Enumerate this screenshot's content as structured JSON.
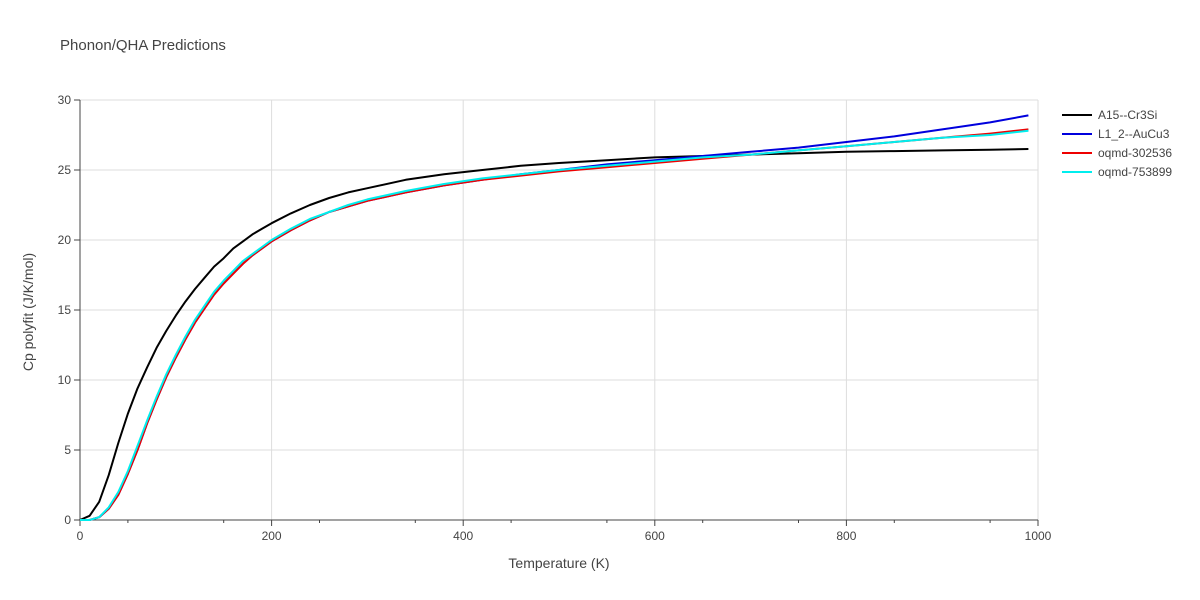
{
  "chart_data": {
    "type": "line",
    "title": "Phonon/QHA Predictions",
    "xlabel": "Temperature (K)",
    "ylabel": "Cp polyfit (J/K/mol)",
    "xlim": [
      0,
      1000
    ],
    "ylim": [
      0,
      30
    ],
    "xticks": [
      0,
      200,
      400,
      600,
      800,
      1000
    ],
    "yticks": [
      0,
      5,
      10,
      15,
      20,
      25,
      30
    ],
    "grid": true,
    "legend_position": "top-right, outside plot",
    "series": [
      {
        "name": "A15--Cr3Si",
        "color": "#000000",
        "x": [
          0,
          10,
          20,
          30,
          40,
          50,
          60,
          70,
          80,
          90,
          100,
          110,
          120,
          130,
          140,
          150,
          160,
          170,
          180,
          190,
          200,
          220,
          240,
          260,
          280,
          300,
          340,
          380,
          420,
          460,
          500,
          550,
          600,
          650,
          700,
          750,
          800,
          850,
          900,
          950,
          990
        ],
        "y": [
          0,
          0.3,
          1.3,
          3.2,
          5.5,
          7.6,
          9.4,
          10.9,
          12.3,
          13.5,
          14.6,
          15.6,
          16.5,
          17.3,
          18.1,
          18.7,
          19.4,
          19.9,
          20.4,
          20.8,
          21.2,
          21.9,
          22.5,
          23.0,
          23.4,
          23.7,
          24.3,
          24.7,
          25.0,
          25.3,
          25.5,
          25.7,
          25.9,
          26.0,
          26.1,
          26.2,
          26.3,
          26.35,
          26.4,
          26.45,
          26.5
        ]
      },
      {
        "name": "L1_2--AuCu3",
        "color": "#0000dd",
        "x": [
          0,
          10,
          20,
          30,
          40,
          50,
          60,
          70,
          80,
          90,
          100,
          110,
          120,
          130,
          140,
          150,
          160,
          170,
          180,
          190,
          200,
          220,
          240,
          260,
          280,
          300,
          340,
          380,
          420,
          460,
          500,
          550,
          600,
          650,
          700,
          750,
          800,
          850,
          900,
          950,
          990
        ],
        "y": [
          0,
          0.0,
          0.2,
          0.8,
          1.8,
          3.3,
          5.0,
          6.9,
          8.6,
          10.2,
          11.6,
          12.9,
          14.1,
          15.1,
          16.1,
          16.9,
          17.6,
          18.3,
          18.9,
          19.4,
          19.9,
          20.7,
          21.4,
          22.0,
          22.4,
          22.8,
          23.4,
          23.9,
          24.3,
          24.7,
          25.0,
          25.4,
          25.7,
          26.0,
          26.3,
          26.6,
          27.0,
          27.4,
          27.9,
          28.4,
          28.9
        ]
      },
      {
        "name": "oqmd-302536",
        "color": "#ee0000",
        "x": [
          0,
          10,
          20,
          30,
          40,
          50,
          60,
          70,
          80,
          90,
          100,
          110,
          120,
          130,
          140,
          150,
          160,
          170,
          180,
          190,
          200,
          220,
          240,
          260,
          280,
          300,
          340,
          380,
          420,
          460,
          500,
          550,
          600,
          650,
          700,
          750,
          800,
          850,
          900,
          950,
          990
        ],
        "y": [
          0,
          0.0,
          0.2,
          0.8,
          1.8,
          3.3,
          5.0,
          6.9,
          8.6,
          10.2,
          11.6,
          12.9,
          14.1,
          15.1,
          16.1,
          16.9,
          17.6,
          18.3,
          18.9,
          19.4,
          19.9,
          20.7,
          21.4,
          22.0,
          22.4,
          22.8,
          23.4,
          23.9,
          24.3,
          24.6,
          24.9,
          25.2,
          25.5,
          25.8,
          26.1,
          26.4,
          26.7,
          27.0,
          27.3,
          27.6,
          27.9
        ]
      },
      {
        "name": "oqmd-753899",
        "color": "#00eeee",
        "x": [
          0,
          10,
          20,
          30,
          40,
          50,
          60,
          70,
          80,
          90,
          100,
          110,
          120,
          130,
          140,
          150,
          160,
          170,
          180,
          190,
          200,
          220,
          240,
          260,
          280,
          300,
          340,
          380,
          420,
          460,
          500,
          550,
          600,
          650,
          700,
          750,
          800,
          850,
          900,
          950,
          990
        ],
        "y": [
          0,
          0.0,
          0.2,
          0.9,
          2.0,
          3.5,
          5.3,
          7.1,
          8.8,
          10.4,
          11.8,
          13.1,
          14.3,
          15.3,
          16.3,
          17.1,
          17.8,
          18.5,
          19.0,
          19.5,
          20.0,
          20.8,
          21.5,
          22.0,
          22.5,
          22.9,
          23.5,
          24.0,
          24.4,
          24.7,
          25.0,
          25.3,
          25.6,
          25.9,
          26.1,
          26.4,
          26.7,
          27.0,
          27.3,
          27.5,
          27.8
        ]
      }
    ]
  }
}
